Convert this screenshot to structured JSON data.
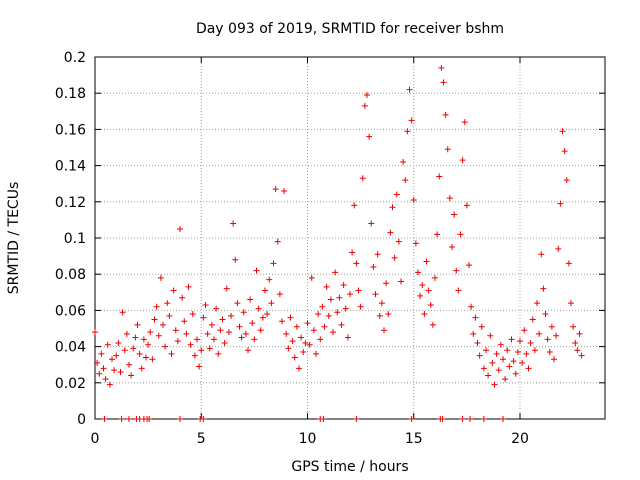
{
  "chart_data": {
    "type": "scatter",
    "title": "Day 093 of 2019, SRMTID for receiver bshm",
    "xlabel": "GPS time / hours",
    "ylabel": "SRMTID / TECUs",
    "xlim": [
      0,
      24
    ],
    "ylim": [
      0,
      0.2
    ],
    "grid": true,
    "marker": "+",
    "color": "#ee0000",
    "x_ticks": [
      0,
      5,
      10,
      15,
      20
    ],
    "x_tick_labels": [
      "0",
      "5",
      "10",
      "15",
      "20"
    ],
    "y_ticks": [
      0,
      0.02,
      0.04,
      0.06,
      0.08,
      0.1,
      0.12,
      0.14,
      0.16,
      0.18,
      0.2
    ],
    "y_tick_labels": [
      "0",
      "0.02",
      "0.04",
      "0.06",
      "0.08",
      "0.1",
      "0.12",
      "0.14",
      "0.16",
      "0.18",
      "0.2"
    ],
    "series": [
      {
        "name": "SRMTID",
        "points": [
          [
            0.0,
            0.048
          ],
          [
            0.1,
            0.031
          ],
          [
            0.2,
            0.025
          ],
          [
            0.3,
            0.036
          ],
          [
            0.4,
            0.028
          ],
          [
            0.5,
            0.022
          ],
          [
            0.6,
            0.041
          ],
          [
            0.7,
            0.019
          ],
          [
            0.8,
            0.033
          ],
          [
            0.9,
            0.027
          ],
          [
            1.0,
            0.035
          ],
          [
            1.1,
            0.042
          ],
          [
            1.2,
            0.026
          ],
          [
            1.3,
            0.059
          ],
          [
            1.4,
            0.038
          ],
          [
            1.5,
            0.047
          ],
          [
            1.6,
            0.03
          ],
          [
            1.7,
            0.024
          ],
          [
            1.8,
            0.039
          ],
          [
            1.9,
            0.045
          ],
          [
            2.0,
            0.052
          ],
          [
            2.1,
            0.036
          ],
          [
            2.2,
            0.028
          ],
          [
            2.3,
            0.044
          ],
          [
            2.4,
            0.034
          ],
          [
            2.5,
            0.041
          ],
          [
            2.6,
            0.048
          ],
          [
            2.7,
            0.033
          ],
          [
            2.8,
            0.055
          ],
          [
            2.9,
            0.062
          ],
          [
            3.0,
            0.046
          ],
          [
            3.1,
            0.078
          ],
          [
            3.2,
            0.052
          ],
          [
            3.3,
            0.04
          ],
          [
            3.4,
            0.064
          ],
          [
            3.5,
            0.057
          ],
          [
            3.6,
            0.036
          ],
          [
            3.7,
            0.071
          ],
          [
            3.8,
            0.049
          ],
          [
            3.9,
            0.043
          ],
          [
            4.0,
            0.105
          ],
          [
            4.1,
            0.067
          ],
          [
            4.2,
            0.054
          ],
          [
            4.3,
            0.047
          ],
          [
            4.4,
            0.073
          ],
          [
            4.5,
            0.041
          ],
          [
            4.6,
            0.058
          ],
          [
            4.7,
            0.035
          ],
          [
            4.8,
            0.044
          ],
          [
            4.9,
            0.029
          ],
          [
            5.0,
            0.038
          ],
          [
            5.1,
            0.056
          ],
          [
            5.2,
            0.063
          ],
          [
            5.3,
            0.047
          ],
          [
            5.4,
            0.039
          ],
          [
            5.5,
            0.052
          ],
          [
            5.6,
            0.044
          ],
          [
            5.7,
            0.061
          ],
          [
            5.8,
            0.036
          ],
          [
            5.9,
            0.049
          ],
          [
            6.0,
            0.055
          ],
          [
            6.1,
            0.042
          ],
          [
            6.2,
            0.072
          ],
          [
            6.3,
            0.048
          ],
          [
            6.4,
            0.057
          ],
          [
            6.5,
            0.108
          ],
          [
            6.6,
            0.088
          ],
          [
            6.7,
            0.064
          ],
          [
            6.8,
            0.051
          ],
          [
            6.9,
            0.045
          ],
          [
            7.0,
            0.059
          ],
          [
            7.1,
            0.047
          ],
          [
            7.2,
            0.038
          ],
          [
            7.3,
            0.066
          ],
          [
            7.4,
            0.053
          ],
          [
            7.5,
            0.044
          ],
          [
            7.6,
            0.082
          ],
          [
            7.7,
            0.061
          ],
          [
            7.8,
            0.049
          ],
          [
            7.9,
            0.056
          ],
          [
            8.0,
            0.071
          ],
          [
            8.1,
            0.058
          ],
          [
            8.2,
            0.077
          ],
          [
            8.3,
            0.064
          ],
          [
            8.4,
            0.086
          ],
          [
            8.5,
            0.127
          ],
          [
            8.6,
            0.098
          ],
          [
            8.7,
            0.069
          ],
          [
            8.8,
            0.054
          ],
          [
            8.9,
            0.126
          ],
          [
            9.0,
            0.047
          ],
          [
            9.1,
            0.039
          ],
          [
            9.2,
            0.056
          ],
          [
            9.3,
            0.043
          ],
          [
            9.4,
            0.034
          ],
          [
            9.5,
            0.051
          ],
          [
            9.6,
            0.028
          ],
          [
            9.7,
            0.045
          ],
          [
            9.8,
            0.037
          ],
          [
            9.9,
            0.042
          ],
          [
            10.0,
            0.053
          ],
          [
            10.1,
            0.041
          ],
          [
            10.2,
            0.078
          ],
          [
            10.3,
            0.049
          ],
          [
            10.4,
            0.036
          ],
          [
            10.5,
            0.058
          ],
          [
            10.6,
            0.044
          ],
          [
            10.7,
            0.062
          ],
          [
            10.8,
            0.051
          ],
          [
            10.9,
            0.073
          ],
          [
            11.0,
            0.057
          ],
          [
            11.1,
            0.066
          ],
          [
            11.2,
            0.048
          ],
          [
            11.3,
            0.081
          ],
          [
            11.4,
            0.059
          ],
          [
            11.5,
            0.067
          ],
          [
            11.6,
            0.052
          ],
          [
            11.7,
            0.074
          ],
          [
            11.8,
            0.061
          ],
          [
            11.9,
            0.045
          ],
          [
            12.0,
            0.069
          ],
          [
            12.1,
            0.092
          ],
          [
            12.2,
            0.118
          ],
          [
            12.3,
            0.086
          ],
          [
            12.4,
            0.071
          ],
          [
            12.5,
            0.062
          ],
          [
            12.6,
            0.133
          ],
          [
            12.7,
            0.173
          ],
          [
            12.8,
            0.179
          ],
          [
            12.9,
            0.156
          ],
          [
            13.0,
            0.108
          ],
          [
            13.1,
            0.084
          ],
          [
            13.2,
            0.069
          ],
          [
            13.3,
            0.091
          ],
          [
            13.4,
            0.057
          ],
          [
            13.5,
            0.064
          ],
          [
            13.6,
            0.049
          ],
          [
            13.7,
            0.075
          ],
          [
            13.8,
            0.058
          ],
          [
            13.9,
            0.103
          ],
          [
            14.0,
            0.117
          ],
          [
            14.1,
            0.089
          ],
          [
            14.2,
            0.124
          ],
          [
            14.3,
            0.098
          ],
          [
            14.4,
            0.076
          ],
          [
            14.5,
            0.142
          ],
          [
            14.6,
            0.132
          ],
          [
            14.7,
            0.159
          ],
          [
            14.8,
            0.182
          ],
          [
            14.9,
            0.165
          ],
          [
            15.0,
            0.121
          ],
          [
            15.1,
            0.097
          ],
          [
            15.2,
            0.081
          ],
          [
            15.3,
            0.068
          ],
          [
            15.4,
            0.074
          ],
          [
            15.5,
            0.058
          ],
          [
            15.6,
            0.087
          ],
          [
            15.7,
            0.071
          ],
          [
            15.8,
            0.063
          ],
          [
            15.9,
            0.052
          ],
          [
            16.0,
            0.078
          ],
          [
            16.1,
            0.102
          ],
          [
            16.2,
            0.134
          ],
          [
            16.3,
            0.194
          ],
          [
            16.4,
            0.186
          ],
          [
            16.5,
            0.168
          ],
          [
            16.6,
            0.149
          ],
          [
            16.7,
            0.122
          ],
          [
            16.8,
            0.095
          ],
          [
            16.9,
            0.113
          ],
          [
            17.0,
            0.082
          ],
          [
            17.1,
            0.071
          ],
          [
            17.2,
            0.102
          ],
          [
            17.3,
            0.143
          ],
          [
            17.4,
            0.164
          ],
          [
            17.5,
            0.118
          ],
          [
            17.6,
            0.085
          ],
          [
            17.7,
            0.062
          ],
          [
            17.8,
            0.047
          ],
          [
            17.9,
            0.056
          ],
          [
            18.0,
            0.042
          ],
          [
            18.1,
            0.035
          ],
          [
            18.2,
            0.051
          ],
          [
            18.3,
            0.028
          ],
          [
            18.4,
            0.038
          ],
          [
            18.5,
            0.024
          ],
          [
            18.6,
            0.046
          ],
          [
            18.7,
            0.031
          ],
          [
            18.8,
            0.019
          ],
          [
            18.9,
            0.036
          ],
          [
            19.0,
            0.027
          ],
          [
            19.1,
            0.041
          ],
          [
            19.2,
            0.033
          ],
          [
            19.3,
            0.022
          ],
          [
            19.4,
            0.038
          ],
          [
            19.5,
            0.029
          ],
          [
            19.6,
            0.044
          ],
          [
            19.7,
            0.032
          ],
          [
            19.8,
            0.025
          ],
          [
            19.9,
            0.037
          ],
          [
            20.0,
            0.043
          ],
          [
            20.1,
            0.031
          ],
          [
            20.2,
            0.049
          ],
          [
            20.3,
            0.036
          ],
          [
            20.4,
            0.028
          ],
          [
            20.5,
            0.042
          ],
          [
            20.6,
            0.055
          ],
          [
            20.7,
            0.038
          ],
          [
            20.8,
            0.064
          ],
          [
            20.9,
            0.047
          ],
          [
            21.0,
            0.091
          ],
          [
            21.1,
            0.072
          ],
          [
            21.2,
            0.058
          ],
          [
            21.3,
            0.044
          ],
          [
            21.4,
            0.037
          ],
          [
            21.5,
            0.051
          ],
          [
            21.6,
            0.033
          ],
          [
            21.7,
            0.046
          ],
          [
            21.8,
            0.094
          ],
          [
            21.9,
            0.119
          ],
          [
            22.0,
            0.159
          ],
          [
            22.1,
            0.148
          ],
          [
            22.2,
            0.132
          ],
          [
            22.3,
            0.086
          ],
          [
            22.4,
            0.064
          ],
          [
            22.5,
            0.051
          ],
          [
            22.6,
            0.042
          ],
          [
            22.7,
            0.038
          ],
          [
            22.8,
            0.047
          ],
          [
            22.9,
            0.035
          ]
        ]
      }
    ],
    "zero_points_x": [
      0.45,
      1.25,
      1.6,
      1.95,
      2.1,
      2.3,
      2.45,
      2.55,
      4.0,
      4.95,
      5.1,
      10.6,
      10.75,
      12.3,
      14.9,
      16.25,
      16.35,
      17.3,
      17.65,
      18.3,
      19.2
    ]
  }
}
